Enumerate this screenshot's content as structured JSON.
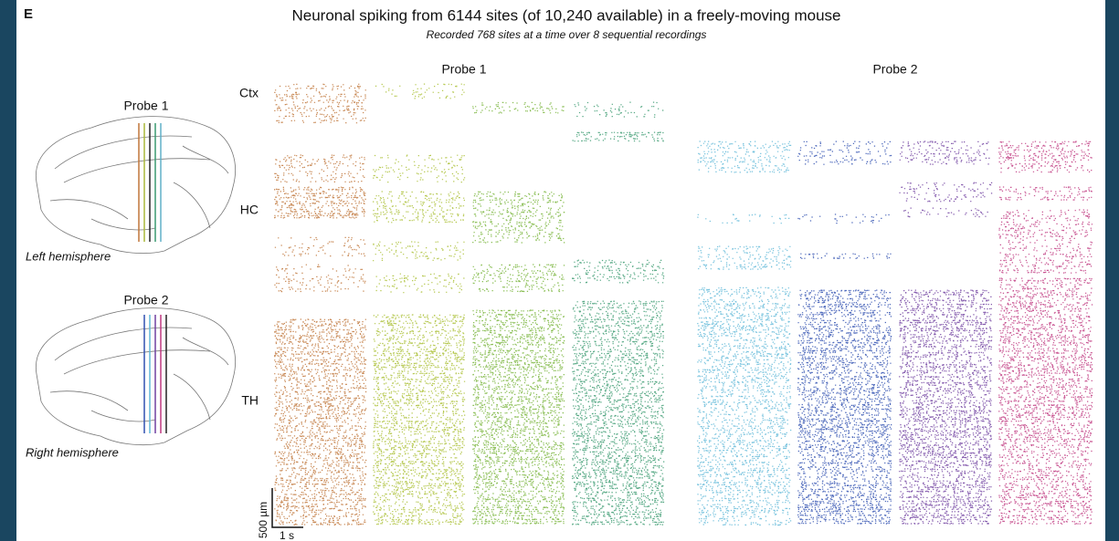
{
  "panel_label": "E",
  "header": {
    "title": "Neuronal spiking from 6144 sites (of 10,240 available) in a freely-moving mouse",
    "subtitle": "Recorded 768 sites at a time over 8 sequential recordings"
  },
  "probes": [
    {
      "label": "Probe 1"
    },
    {
      "label": "Probe 2"
    }
  ],
  "anatomy": {
    "probe_1": "Probe 1",
    "left": "Left hemisphere",
    "probe_2": "Probe 2",
    "right": "Right hemisphere"
  },
  "regions": [
    "Ctx",
    "HC",
    "TH"
  ],
  "scale_bar": {
    "length": "500 µm",
    "time": "1 s"
  }
}
